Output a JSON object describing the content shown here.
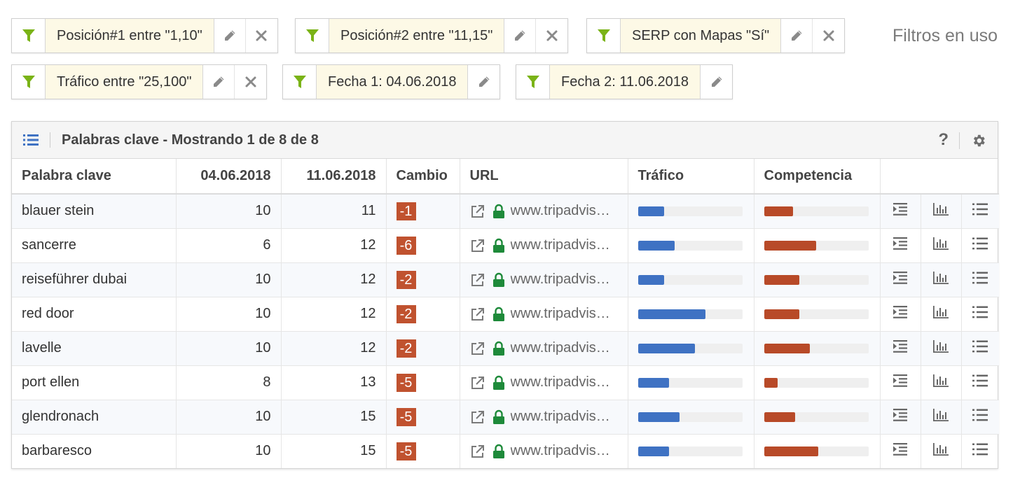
{
  "filters": [
    {
      "label": "Posición#1 entre \"1,10\"",
      "editable": true,
      "removable": true
    },
    {
      "label": "Posición#2 entre \"11,15\"",
      "editable": true,
      "removable": true
    },
    {
      "label": "SERP con Mapas \"Sí\"",
      "editable": true,
      "removable": true
    },
    {
      "label": "Tráfico entre \"25,100\"",
      "editable": true,
      "removable": true
    },
    {
      "label": "Fecha 1: 04.06.2018",
      "editable": true,
      "removable": false
    },
    {
      "label": "Fecha 2: 11.06.2018",
      "editable": true,
      "removable": false
    }
  ],
  "filters_label": "Filtros en uso",
  "panel": {
    "title": "Palabras clave - Mostrando 1 de 8 de 8",
    "help": "?"
  },
  "columns": {
    "keyword": "Palabra clave",
    "date1": "04.06.2018",
    "date2": "11.06.2018",
    "change": "Cambio",
    "url": "URL",
    "traffic": "Tráfico",
    "competition": "Competencia"
  },
  "colors": {
    "funnel": "#7ab317",
    "badge": "#c0522f",
    "traffic_bar": "#3f72c3",
    "competition_bar": "#b84a28",
    "lock": "#1e8a3a"
  },
  "rows": [
    {
      "keyword": "blauer stein",
      "pos1": "10",
      "pos2": "11",
      "change": "-1",
      "url": "www.tripadvisor.de",
      "traffic": 0.25,
      "competition": 0.28
    },
    {
      "keyword": "sancerre",
      "pos1": "6",
      "pos2": "12",
      "change": "-6",
      "url": "www.tripadvisor.de",
      "traffic": 0.35,
      "competition": 0.5
    },
    {
      "keyword": "reiseführer dubai",
      "pos1": "10",
      "pos2": "12",
      "change": "-2",
      "url": "www.tripadvisor.de",
      "traffic": 0.25,
      "competition": 0.34
    },
    {
      "keyword": "red door",
      "pos1": "10",
      "pos2": "12",
      "change": "-2",
      "url": "www.tripadvisor.de",
      "traffic": 0.65,
      "competition": 0.34
    },
    {
      "keyword": "lavelle",
      "pos1": "10",
      "pos2": "12",
      "change": "-2",
      "url": "www.tripadvisor.de",
      "traffic": 0.55,
      "competition": 0.44
    },
    {
      "keyword": "port ellen",
      "pos1": "8",
      "pos2": "13",
      "change": "-5",
      "url": "www.tripadvisor.de",
      "traffic": 0.3,
      "competition": 0.13
    },
    {
      "keyword": "glendronach",
      "pos1": "10",
      "pos2": "15",
      "change": "-5",
      "url": "www.tripadvisor.de",
      "traffic": 0.4,
      "competition": 0.3
    },
    {
      "keyword": "barbaresco",
      "pos1": "10",
      "pos2": "15",
      "change": "-5",
      "url": "www.tripadvisor.de",
      "traffic": 0.3,
      "competition": 0.52
    }
  ]
}
